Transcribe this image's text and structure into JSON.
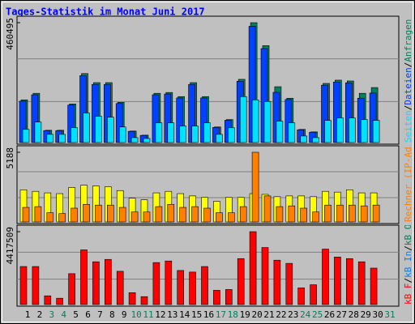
{
  "chart_data": {
    "type": "bar",
    "title": "Tages-Statistik im Monat Juni 2017",
    "title_color": "#0000ff",
    "legend_separator": "/",
    "categories": [
      "1",
      "2",
      "3",
      "4",
      "5",
      "6",
      "7",
      "8",
      "9",
      "10",
      "11",
      "12",
      "13",
      "14",
      "15",
      "16",
      "17",
      "18",
      "19",
      "20",
      "21",
      "22",
      "23",
      "24",
      "25",
      "26",
      "27",
      "28",
      "29",
      "30",
      "31"
    ],
    "category_colors": [
      "#000000",
      "#000000",
      "#00805c",
      "#00805c",
      "#000000",
      "#000000",
      "#000000",
      "#000000",
      "#000000",
      "#00805c",
      "#00805c",
      "#000000",
      "#000000",
      "#000000",
      "#000000",
      "#000000",
      "#00805c",
      "#00805c",
      "#000000",
      "#000000",
      "#000000",
      "#000000",
      "#000000",
      "#00805c",
      "#00805c",
      "#000000",
      "#000000",
      "#000000",
      "#000000",
      "#000000",
      "#00805c"
    ],
    "panels": [
      {
        "ylim": [
          0,
          460495
        ],
        "yticks": [
          460495
        ],
        "series": [
          {
            "name": "Seiten",
            "color": "#00e0ff",
            "values": [
              50500,
              78900,
              31500,
              31500,
              56800,
              113500,
              100900,
              97800,
              59900,
              18900,
              15800,
              75700,
              75700,
              63100,
              63100,
              75700,
              31500,
              56800,
              176600,
              164000,
              157700,
              82000,
              75700,
              25200,
              18900,
              85200,
              94600,
              94600,
              88300,
              85200,
              null
            ]
          },
          {
            "name": "Dateien",
            "color": "#0040ff",
            "values": [
              159000,
              183500,
              45900,
              45900,
              143800,
              257000,
              223300,
              223300,
              149900,
              42900,
              27500,
              183500,
              186600,
              171300,
              223300,
              171300,
              58100,
              85700,
              235600,
              446700,
              361000,
              193100,
              165200,
              49000,
              39800,
              220300,
              232500,
              229500,
              170300,
              190200,
              null
            ]
          },
          {
            "name": "Anfragen",
            "color": "#00805c",
            "values": [
              164000,
              189200,
              47300,
              47300,
              148200,
              265000,
              230200,
              230200,
              154500,
              44200,
              28400,
              189200,
              192400,
              176600,
              230200,
              176600,
              59900,
              88300,
              242900,
              460495,
              372200,
              214500,
              170300,
              50500,
              41000,
              227100,
              239700,
              236600,
              189200,
              211300,
              null
            ]
          }
        ]
      },
      {
        "ylim": [
          0,
          5188
        ],
        "yticks": [
          5188
        ],
        "series": [
          {
            "name": "Rechner (IP-Adressen)",
            "color": "#ff8000",
            "values": [
              1083,
              1140,
              684,
              627,
              1026,
              1311,
              1254,
              1254,
              1083,
              741,
              741,
              1140,
              1311,
              1083,
              1140,
              1026,
              684,
              684,
              1140,
              5188,
              1938,
              1140,
              1197,
              1026,
              741,
              1254,
              1254,
              1254,
              1197,
              1254,
              null
            ]
          },
          {
            "name": "Besuche",
            "color": "#ffff00",
            "values": [
              2394,
              2280,
              2166,
              2109,
              2565,
              2736,
              2679,
              2622,
              2337,
              1767,
              1653,
              2166,
              2280,
              2109,
              1938,
              1824,
              1539,
              1824,
              1824,
              2109,
              2052,
              1881,
              1938,
              1938,
              1881,
              2280,
              2223,
              2394,
              2166,
              2166,
              null
            ]
          }
        ]
      },
      {
        "ylim": [
          0,
          4417509
        ],
        "yticks": [
          4417509
        ],
        "series": [
          {
            "name": "kB F",
            "color": "#ff0000",
            "values": [
              2304800,
              2304800,
              528200,
              384100,
              1872600,
              3313100,
              2592900,
              2736900,
              2016700,
              720200,
              480200,
              2544800,
              2640900,
              2064700,
              1968700,
              2304800,
              864300,
              912300,
              2784900,
              4417509,
              3457200,
              2688900,
              2496800,
              1008300,
              1200400,
              3361100,
              2881000,
              2784900,
              2592900,
              2208700,
              null
            ]
          }
        ],
        "extra_legend": [
          {
            "name": "kB In",
            "color": "#0080ff"
          },
          {
            "name": "kB Out",
            "color": "#00805c"
          }
        ]
      }
    ]
  }
}
